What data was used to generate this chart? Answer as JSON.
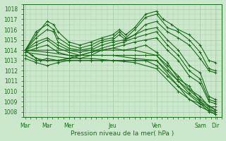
{
  "background_color": "#cce8cc",
  "grid_color": "#aacfaa",
  "line_color": "#1a6a1a",
  "xlabel": "Pression niveau de la mer( hPa )",
  "yticks": [
    1008,
    1009,
    1010,
    1011,
    1012,
    1013,
    1014,
    1015,
    1016,
    1017,
    1018
  ],
  "xtick_labels": [
    "Mar",
    "Mar",
    "Mer",
    "Jeu",
    "Ven",
    "Sam",
    "Dir"
  ],
  "xtick_positions": [
    0,
    1,
    2,
    4,
    6,
    8,
    8.7
  ],
  "ylim": [
    1007.5,
    1018.5
  ],
  "xlim": [
    -0.1,
    9.0
  ],
  "series": [
    {
      "x": [
        0,
        0.5,
        1.0,
        1.3,
        1.5,
        2.0,
        2.5,
        3.0,
        3.5,
        4.0,
        4.3,
        4.6,
        5.0,
        5.5,
        6.0,
        6.3,
        6.7,
        7.0,
        7.5,
        8.0,
        8.4,
        8.7
      ],
      "y": [
        1014,
        1015.5,
        1016.8,
        1016.5,
        1015.8,
        1014.8,
        1014.5,
        1014.8,
        1015.2,
        1015.5,
        1016.0,
        1015.5,
        1016.2,
        1017.5,
        1017.8,
        1017.0,
        1016.5,
        1016.0,
        1015.5,
        1014.5,
        1013.0,
        1012.8
      ]
    },
    {
      "x": [
        0,
        0.5,
        1.0,
        1.3,
        1.5,
        2.0,
        2.5,
        3.0,
        3.5,
        4.0,
        4.3,
        4.6,
        5.0,
        5.5,
        6.0,
        6.5,
        7.0,
        7.5,
        8.0,
        8.4,
        8.7
      ],
      "y": [
        1014,
        1015.8,
        1016.5,
        1016.0,
        1015.2,
        1014.5,
        1014.2,
        1014.5,
        1015.0,
        1015.2,
        1015.8,
        1015.2,
        1016.0,
        1017.2,
        1017.5,
        1016.2,
        1015.8,
        1015.0,
        1013.8,
        1012.2,
        1012.0
      ]
    },
    {
      "x": [
        0,
        0.5,
        1.0,
        1.3,
        1.5,
        2.0,
        2.5,
        3.0,
        3.5,
        4.0,
        4.3,
        4.6,
        5.0,
        5.5,
        6.0,
        6.5,
        7.0,
        7.5,
        8.0,
        8.4,
        8.7
      ],
      "y": [
        1014,
        1015.2,
        1016.0,
        1015.8,
        1014.8,
        1014.2,
        1014.0,
        1014.2,
        1014.8,
        1015.0,
        1015.5,
        1015.0,
        1015.5,
        1016.5,
        1016.8,
        1015.8,
        1015.2,
        1014.5,
        1013.2,
        1012.0,
        1011.8
      ]
    },
    {
      "x": [
        0,
        0.5,
        1.0,
        1.5,
        2.0,
        2.5,
        3.0,
        3.5,
        4.0,
        4.5,
        5.0,
        5.5,
        6.0,
        6.5,
        7.0,
        7.5,
        8.0,
        8.4,
        8.7
      ],
      "y": [
        1014,
        1014.8,
        1015.2,
        1014.5,
        1014.0,
        1013.8,
        1014.0,
        1014.5,
        1014.8,
        1015.0,
        1015.5,
        1016.0,
        1016.2,
        1015.0,
        1014.0,
        1012.5,
        1011.8,
        1009.5,
        1009.2
      ]
    },
    {
      "x": [
        0,
        0.5,
        1.0,
        1.5,
        2.0,
        2.5,
        3.0,
        3.5,
        4.0,
        4.5,
        5.0,
        5.5,
        6.0,
        6.5,
        7.0,
        7.5,
        8.0,
        8.4,
        8.7
      ],
      "y": [
        1014,
        1014.5,
        1015.0,
        1014.2,
        1013.8,
        1013.5,
        1013.8,
        1014.2,
        1014.5,
        1014.8,
        1015.2,
        1015.5,
        1015.8,
        1014.5,
        1013.5,
        1012.0,
        1011.2,
        1009.2,
        1009.0
      ]
    },
    {
      "x": [
        0,
        0.5,
        1.0,
        1.5,
        2.0,
        2.5,
        3.0,
        3.5,
        4.0,
        4.5,
        5.0,
        5.5,
        6.0,
        6.5,
        7.0,
        7.5,
        8.0,
        8.4,
        8.7
      ],
      "y": [
        1013.8,
        1014.2,
        1014.5,
        1013.8,
        1013.5,
        1013.2,
        1013.5,
        1014.0,
        1014.2,
        1014.5,
        1014.8,
        1015.0,
        1015.2,
        1014.0,
        1013.0,
        1011.5,
        1010.8,
        1009.0,
        1008.8
      ]
    },
    {
      "x": [
        0,
        0.3,
        0.7,
        1.0,
        1.5,
        2.0,
        2.5,
        3.0,
        3.5,
        4.0,
        4.5,
        5.0,
        5.5,
        6.0,
        6.5,
        7.0,
        7.5,
        8.0,
        8.4,
        8.7
      ],
      "y": [
        1014,
        1013.5,
        1013.0,
        1013.2,
        1013.0,
        1013.2,
        1013.5,
        1013.8,
        1014.0,
        1014.2,
        1014.0,
        1014.2,
        1014.5,
        1013.8,
        1012.8,
        1011.2,
        1010.5,
        1009.0,
        1008.5,
        1008.5
      ]
    },
    {
      "x": [
        0,
        0.5,
        1.0,
        1.5,
        2.0,
        2.5,
        3.0,
        3.5,
        4.0,
        4.5,
        5.0,
        5.5,
        6.0,
        6.5,
        7.0,
        7.5,
        8.0,
        8.4,
        8.7
      ],
      "y": [
        1014,
        1013.2,
        1013.0,
        1013.0,
        1013.2,
        1013.5,
        1013.5,
        1013.5,
        1013.5,
        1013.5,
        1013.5,
        1013.5,
        1013.5,
        1012.5,
        1011.5,
        1010.2,
        1009.5,
        1008.5,
        1008.2
      ]
    },
    {
      "x": [
        0,
        0.5,
        1.0,
        1.5,
        2.0,
        2.5,
        3.0,
        3.5,
        4.0,
        4.5,
        5.0,
        5.5,
        6.0,
        6.5,
        7.0,
        7.5,
        8.0,
        8.4,
        8.7
      ],
      "y": [
        1013.5,
        1013.0,
        1013.0,
        1013.0,
        1013.0,
        1013.0,
        1013.0,
        1013.0,
        1013.0,
        1013.0,
        1013.0,
        1013.0,
        1013.0,
        1012.0,
        1011.0,
        1009.8,
        1009.0,
        1008.2,
        1008.0
      ]
    },
    {
      "x": [
        0,
        0.5,
        1.0,
        1.5,
        2.0,
        2.5,
        3.0,
        3.5,
        4.0,
        4.5,
        5.0,
        5.5,
        6.0,
        6.5,
        7.0,
        7.5,
        8.0,
        8.4,
        8.7
      ],
      "y": [
        1013.2,
        1012.8,
        1012.5,
        1012.8,
        1013.0,
        1013.0,
        1013.0,
        1013.0,
        1013.0,
        1013.0,
        1013.0,
        1013.0,
        1012.5,
        1011.5,
        1010.5,
        1009.2,
        1008.8,
        1008.0,
        1007.8
      ]
    },
    {
      "x": [
        0,
        1.0,
        2.0,
        3.0,
        4.0,
        5.0,
        6.0,
        7.0,
        8.0,
        8.7
      ],
      "y": [
        1014.0,
        1014.0,
        1014.0,
        1014.0,
        1014.0,
        1014.0,
        1013.5,
        1011.0,
        1009.2,
        1008.2
      ]
    },
    {
      "x": [
        0,
        1.0,
        2.0,
        3.0,
        4.0,
        5.0,
        6.0,
        7.0,
        8.0,
        8.7
      ],
      "y": [
        1014.0,
        1013.8,
        1013.5,
        1013.5,
        1013.5,
        1013.2,
        1013.0,
        1010.5,
        1008.8,
        1008.0
      ]
    },
    {
      "x": [
        0,
        1.0,
        2.0,
        3.0,
        4.0,
        5.0,
        6.0,
        7.0,
        8.0,
        8.7
      ],
      "y": [
        1013.8,
        1013.5,
        1013.2,
        1013.2,
        1013.0,
        1012.8,
        1012.2,
        1010.0,
        1008.5,
        1007.8
      ]
    }
  ],
  "marker": "+",
  "marker_size": 2.5,
  "line_width": 0.8,
  "tick_fontsize": 5.5
}
